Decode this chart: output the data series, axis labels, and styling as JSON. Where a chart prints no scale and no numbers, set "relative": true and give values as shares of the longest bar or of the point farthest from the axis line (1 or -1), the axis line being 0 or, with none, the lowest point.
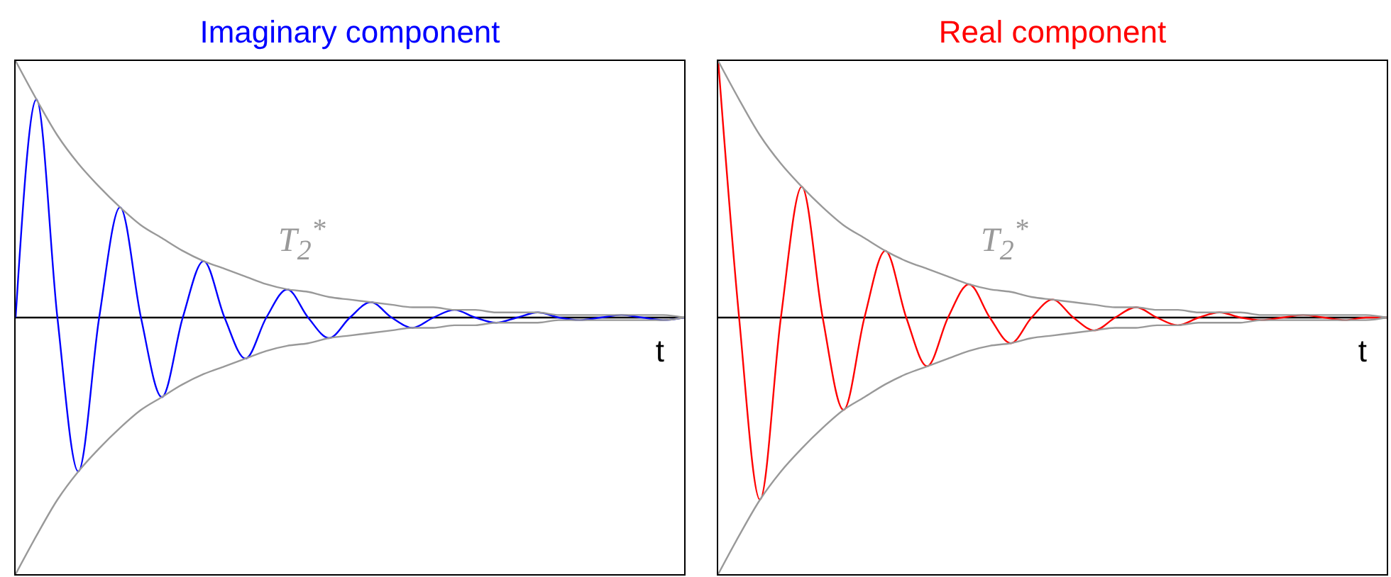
{
  "chart_data": [
    {
      "type": "line",
      "title": "Imaginary component",
      "xlabel": "t",
      "relative": true,
      "annotations": [
        "T$_{2}$$^{*}$"
      ],
      "categories": [
        null,
        null,
        null,
        null,
        null,
        null,
        null,
        null,
        null,
        null,
        null,
        null,
        null,
        null,
        null,
        null,
        null,
        null,
        null,
        null,
        null,
        null,
        null,
        null,
        null,
        null,
        null,
        null,
        null,
        null,
        null,
        null,
        null
      ],
      "series": [
        {
          "color": "#0000ff",
          "values": [
            0,
            0.85,
            0,
            -0.6,
            0,
            0.43,
            0,
            -0.31,
            0,
            0.22,
            0,
            -0.16,
            0,
            0.11,
            0,
            -0.08,
            0,
            0.06,
            0,
            -0.04,
            0,
            0.03,
            0,
            -0.02,
            0,
            0.02,
            0,
            -0.01,
            0,
            0.01,
            0,
            -0.01,
            0
          ]
        },
        {
          "color": "#999999",
          "values": [
            1,
            0.85,
            0.71,
            0.6,
            0.51,
            0.43,
            0.36,
            0.31,
            0.26,
            0.22,
            0.19,
            0.16,
            0.13,
            0.11,
            0.1,
            0.08,
            0.07,
            0.06,
            0.05,
            0.04,
            0.04,
            0.03,
            0.03,
            0.02,
            0.02,
            0.02,
            0.01,
            0.01,
            0.01,
            0.01,
            0.01,
            0.01,
            0
          ]
        },
        {
          "color": "#999999",
          "values": [
            -1,
            -0.85,
            -0.71,
            -0.6,
            -0.51,
            -0.43,
            -0.36,
            -0.31,
            -0.26,
            -0.22,
            -0.19,
            -0.16,
            -0.13,
            -0.11,
            -0.1,
            -0.08,
            -0.07,
            -0.06,
            -0.05,
            -0.04,
            -0.04,
            -0.03,
            -0.03,
            -0.02,
            -0.02,
            -0.02,
            -0.01,
            -0.01,
            -0.01,
            -0.01,
            -0.01,
            -0.01,
            0
          ]
        }
      ]
    },
    {
      "type": "line",
      "title": "Real component",
      "xlabel": "t",
      "relative": true,
      "annotations": [
        "T$_{2}$$^{*}$"
      ],
      "categories": [
        null,
        null,
        null,
        null,
        null,
        null,
        null,
        null,
        null,
        null,
        null,
        null,
        null,
        null,
        null,
        null,
        null,
        null,
        null,
        null,
        null,
        null,
        null,
        null,
        null,
        null,
        null,
        null,
        null,
        null,
        null,
        null,
        null
      ],
      "series": [
        {
          "color": "#ff0000",
          "values": [
            1,
            0,
            -0.71,
            0,
            0.51,
            0,
            -0.36,
            0,
            0.26,
            0,
            -0.19,
            0,
            0.13,
            0,
            -0.1,
            0,
            0.07,
            0,
            -0.05,
            0,
            0.04,
            0,
            -0.03,
            0,
            0.02,
            0,
            -0.01,
            0,
            0.01,
            0,
            -0.01,
            0,
            0
          ]
        },
        {
          "color": "#999999",
          "values": [
            1,
            0.85,
            0.71,
            0.6,
            0.51,
            0.43,
            0.36,
            0.31,
            0.26,
            0.22,
            0.19,
            0.16,
            0.13,
            0.11,
            0.1,
            0.08,
            0.07,
            0.06,
            0.05,
            0.04,
            0.04,
            0.03,
            0.03,
            0.02,
            0.02,
            0.02,
            0.01,
            0.01,
            0.01,
            0.01,
            0.01,
            0.01,
            0
          ]
        },
        {
          "color": "#999999",
          "values": [
            -1,
            -0.85,
            -0.71,
            -0.6,
            -0.51,
            -0.43,
            -0.36,
            -0.31,
            -0.26,
            -0.22,
            -0.19,
            -0.16,
            -0.13,
            -0.11,
            -0.1,
            -0.08,
            -0.07,
            -0.06,
            -0.05,
            -0.04,
            -0.04,
            -0.03,
            -0.03,
            -0.02,
            -0.02,
            -0.02,
            -0.01,
            -0.01,
            -0.01,
            -0.01,
            -0.01,
            -0.01,
            0
          ]
        }
      ]
    }
  ]
}
